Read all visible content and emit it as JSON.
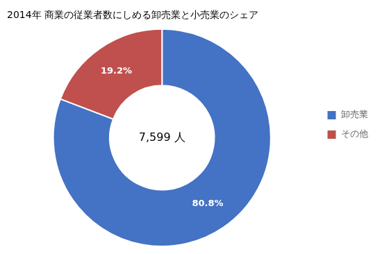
{
  "chart_data": {
    "type": "doughnut",
    "title": "2014年 商業の従業者数にしめる卸売業と小売業のシェア",
    "categories": [
      "卸売業",
      "その他"
    ],
    "values": [
      80.8,
      19.2
    ],
    "value_labels": [
      "80.8%",
      "19.2%"
    ],
    "colors": [
      "#4472C4",
      "#C0504D"
    ],
    "data_labels": true,
    "annotations": [
      "7,599 人"
    ],
    "legend": "right"
  }
}
